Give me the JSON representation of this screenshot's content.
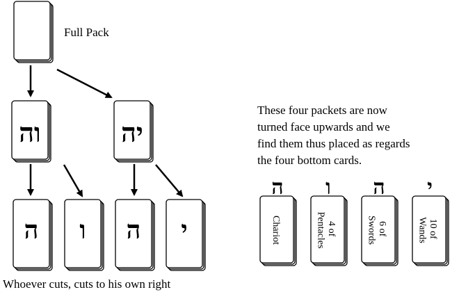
{
  "full_pack_label": "Full Pack",
  "cut_note": "Whoever cuts, cuts to his own right",
  "description_lines": [
    "These four packets are now",
    "turned face upwards and we",
    "find them thus placed as regards",
    "the four bottom cards."
  ],
  "split_packs": [
    {
      "letters": "וה"
    },
    {
      "letters": "יה"
    }
  ],
  "bottom_packs": [
    {
      "letter": "ה"
    },
    {
      "letter": "ו"
    },
    {
      "letter": "ה"
    },
    {
      "letter": "י"
    }
  ],
  "result_cards": [
    {
      "letter": "ה",
      "lines": [
        "Chariot"
      ]
    },
    {
      "letter": "ו",
      "lines": [
        "4 of",
        "Pentacles"
      ]
    },
    {
      "letter": "ה",
      "lines": [
        "6 of",
        "Swords"
      ]
    },
    {
      "letter": "י",
      "lines": [
        "10 of",
        "Wands"
      ]
    }
  ]
}
